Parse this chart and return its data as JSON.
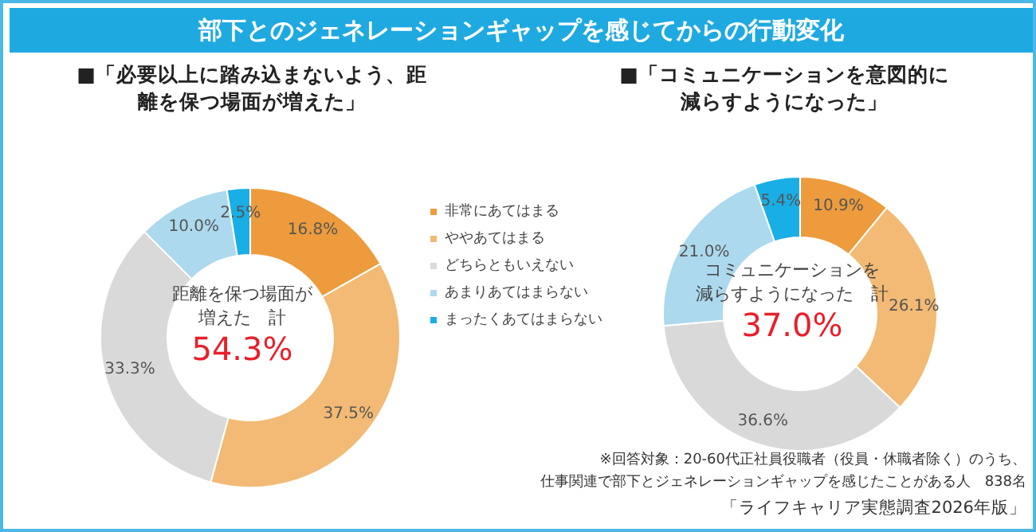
{
  "chart_data": [
    {
      "type": "donut",
      "title": "部下とのジェネレーションギャップを感じてからの行動変化",
      "subtitle": "■「必要以上に踏み込まないよう、距離を保つ場面が増えた」",
      "categories": [
        "非常にあてはまる",
        "ややあてはまる",
        "どちらともいえない",
        "あまりあてはまらない",
        "まったくあてはまらない"
      ],
      "values": [
        16.8,
        37.5,
        33.3,
        10.0,
        2.5
      ],
      "value_labels": [
        "16.8%",
        "37.5%",
        "33.3%",
        "10.0%",
        "2.5%"
      ],
      "colors": [
        "#ed9b3c",
        "#f2ba74",
        "#d9d9d9",
        "#acd9ee",
        "#19aee6"
      ],
      "legend": "right",
      "annotations": [
        "距離を保つ場面が",
        "増えた　計",
        "54.3%"
      ]
    },
    {
      "type": "donut",
      "subtitle": "■「コミュニケーションを意図的に減らすようになった」",
      "values": [
        10.9,
        26.1,
        36.6,
        21.0,
        5.4
      ],
      "categories": [
        null,
        null,
        null,
        null,
        null
      ],
      "value_labels": [
        "10.9%",
        "26.1%",
        "36.6%",
        "21.0%",
        "5.4%"
      ],
      "colors": [
        "#ed9b3c",
        "#f2ba74",
        "#d9d9d9",
        "#acd9ee",
        "#19aee6"
      ],
      "annotations": [
        "コミュニケーションを",
        "減らすようになった　計",
        "37.0%",
        "※回答対象：20-60代正社員役職者（役員・休職者除く）のうち、",
        "仕事関連で部下とジェネレーションギャップを感じたことがある人　838名",
        "「ライフキャリア実態調査2026年版」"
      ]
    }
  ]
}
